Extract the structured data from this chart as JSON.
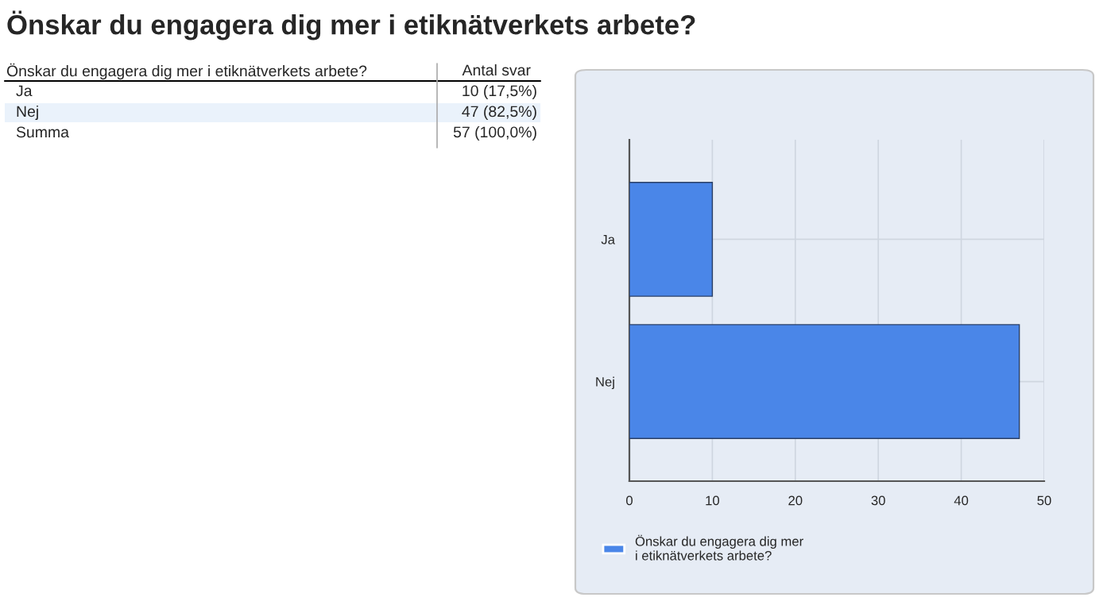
{
  "chart_data": {
    "type": "bar",
    "orientation": "horizontal",
    "title": "Önskar du engagera dig mer i etiknätverkets arbete?",
    "categories": [
      "Ja",
      "Nej"
    ],
    "series": [
      {
        "name": "Önskar du engagera dig mer\ni etiknätverkets arbete?",
        "color": "#4a86e8",
        "values": [
          10,
          47
        ]
      }
    ],
    "xlim": [
      0,
      50
    ],
    "xticks": [
      0,
      10,
      20,
      30,
      40,
      50
    ],
    "grid": true,
    "legend": "bottom left",
    "annotations": [
      "Önskar du engagera dig mer i etiknätverkets arbete?",
      "Antal svar",
      "10 (17,5%)",
      "47 (82,5%)",
      "Summa",
      "57 (100,0%)"
    ]
  }
}
